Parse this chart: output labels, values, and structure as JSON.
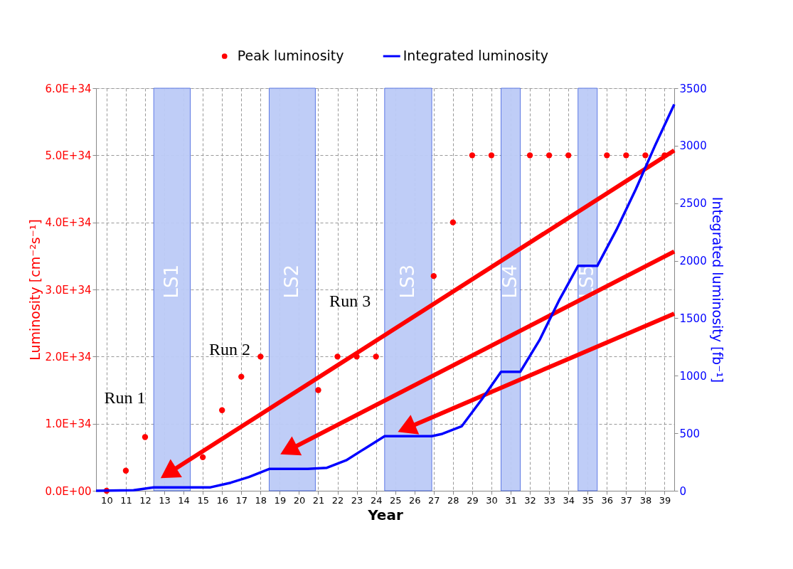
{
  "chart_data": {
    "type": "line",
    "xlabel": "Year",
    "ylabel": "Luminosity [cm⁻²s⁻¹]",
    "y2label": "Integrated luminosity [fb⁻¹]",
    "xlim": [
      9.45,
      39.5
    ],
    "xticks": [
      10,
      11,
      12,
      13,
      14,
      15,
      16,
      17,
      18,
      19,
      20,
      21,
      22,
      23,
      24,
      25,
      26,
      27,
      28,
      29,
      30,
      31,
      32,
      33,
      34,
      35,
      36,
      37,
      38,
      39
    ],
    "ylim": [
      0,
      6e+34
    ],
    "yticks": [
      {
        "value": 0,
        "label": "0.0E+00"
      },
      {
        "value": 1e+34,
        "label": "1.0E+34"
      },
      {
        "value": 2e+34,
        "label": "2.0E+34"
      },
      {
        "value": 3e+34,
        "label": "3.0E+34"
      },
      {
        "value": 4e+34,
        "label": "4.0E+34"
      },
      {
        "value": 5e+34,
        "label": "5.0E+34"
      },
      {
        "value": 6e+34,
        "label": "6.0E+34"
      }
    ],
    "y2lim": [
      0,
      3500
    ],
    "y2ticks": [
      0,
      500,
      1000,
      1500,
      2000,
      2500,
      3000,
      3500
    ],
    "series": [
      {
        "name": "Peak luminosity",
        "type": "scatter",
        "marker": "circle",
        "color": "#ff0000",
        "x": [
          10,
          11,
          12,
          15,
          16,
          17,
          18,
          21,
          22,
          23,
          24,
          27,
          28,
          29,
          30,
          32,
          33,
          34,
          36,
          37,
          38,
          39
        ],
        "values": [
          0,
          3e+33,
          8e+33,
          5e+33,
          1.2e+34,
          1.7e+34,
          2e+34,
          1.5e+34,
          2e+34,
          2e+34,
          2e+34,
          3.2e+34,
          4e+34,
          5e+34,
          5e+34,
          5e+34,
          5e+34,
          5e+34,
          5e+34,
          5e+34,
          5e+34,
          5e+34
        ]
      },
      {
        "name": "Integrated luminosity",
        "marker": "none",
        "axis": "y2",
        "color": "#0000ff",
        "x": [
          9.45,
          11.4,
          12.45,
          15.4,
          16.45,
          17.4,
          18.45,
          20.45,
          21.45,
          22.45,
          23.45,
          24.45,
          26.9,
          27.45,
          28.45,
          29.5,
          30.5,
          31.5,
          32.5,
          33.5,
          34.5,
          35.5,
          36.5,
          37.5,
          38.5,
          39.5
        ],
        "values": [
          0,
          5,
          30,
          30,
          70,
          120,
          190,
          190,
          200,
          265,
          370,
          475,
          475,
          495,
          560,
          795,
          1035,
          1035,
          1310,
          1650,
          1955,
          1955,
          2270,
          2620,
          3000,
          3360
        ]
      }
    ],
    "bands": [
      {
        "axis": "x",
        "from": 12.45,
        "to": 14.35,
        "label": "LS1",
        "color": "#bccbf7"
      },
      {
        "axis": "x",
        "from": 18.45,
        "to": 20.85,
        "label": "LS2",
        "color": "#bccbf7"
      },
      {
        "axis": "x",
        "from": 24.45,
        "to": 26.9,
        "label": "LS3",
        "color": "#bccbf7"
      },
      {
        "axis": "x",
        "from": 30.5,
        "to": 31.5,
        "label": "LS4",
        "color": "#bccbf7"
      },
      {
        "axis": "x",
        "from": 34.5,
        "to": 35.5,
        "label": "LS5",
        "color": "#bccbf7"
      }
    ],
    "annotations": [
      "Run 1",
      "Run 2",
      "Run 3"
    ],
    "legend": "top",
    "grid": true
  }
}
